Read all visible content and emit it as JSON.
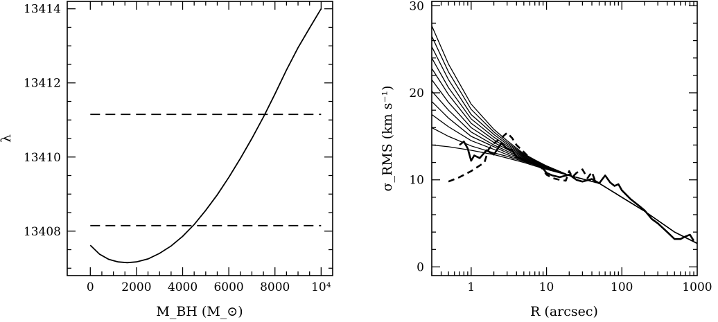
{
  "chart_data": [
    {
      "type": "line",
      "xlabel": "M_BH (M_⊙)",
      "ylabel": "λ",
      "xlim": [
        -1000,
        10500
      ],
      "ylim": [
        13406.8,
        13414.2
      ],
      "xticks": [
        0,
        2000,
        4000,
        6000,
        8000,
        10000
      ],
      "xtick_labels": [
        "0",
        "2000",
        "4000",
        "6000",
        "8000",
        "10⁴"
      ],
      "yticks": [
        13408,
        13410,
        13412,
        13414
      ],
      "ytick_labels": [
        "13408",
        "13410",
        "13412",
        "13414"
      ],
      "grid": false,
      "series": [
        {
          "style": "solid",
          "x": [
            0,
            400,
            800,
            1200,
            1600,
            2000,
            2500,
            3000,
            3500,
            4000,
            4500,
            5000,
            5500,
            6000,
            6500,
            7000,
            7500,
            8000,
            8500,
            9000,
            9500,
            10000
          ],
          "y": [
            13407.62,
            13407.38,
            13407.24,
            13407.17,
            13407.15,
            13407.17,
            13407.25,
            13407.4,
            13407.6,
            13407.86,
            13408.18,
            13408.56,
            13408.98,
            13409.45,
            13409.96,
            13410.5,
            13411.08,
            13411.7,
            13412.35,
            13412.95,
            13413.48,
            13414.0
          ]
        },
        {
          "style": "dashed",
          "x": [
            0,
            10000
          ],
          "y": [
            13411.15,
            13411.15
          ]
        },
        {
          "style": "dashed",
          "x": [
            0,
            10000
          ],
          "y": [
            13408.15,
            13408.15
          ]
        }
      ]
    },
    {
      "type": "line",
      "xlabel": "R (arcsec)",
      "ylabel": "σ_RMS (km s⁻¹)",
      "xscale": "log",
      "xlim": [
        0.3,
        1000
      ],
      "ylim": [
        -1,
        30.5
      ],
      "xticks": [
        1,
        10,
        100,
        1000
      ],
      "xtick_labels": [
        "1",
        "10",
        "100",
        "1000"
      ],
      "yticks": [
        0,
        10,
        20,
        30
      ],
      "ytick_labels": [
        "0",
        "10",
        "20",
        "30"
      ],
      "grid": false,
      "model_curves": {
        "x": [
          0.3,
          0.5,
          1,
          2,
          3,
          5,
          7,
          10,
          20,
          50,
          100,
          200,
          500,
          1000
        ],
        "tail": [
          9.6,
          8.0,
          6.4,
          4.0,
          2.7
        ],
        "series": [
          {
            "y": [
              14.0,
              13.8,
              13.4,
              12.9,
              12.5,
              12.0,
              11.6,
              11.2,
              10.5
            ]
          },
          {
            "y": [
              16.0,
              15.0,
              13.9,
              13.1,
              12.7,
              12.1,
              11.7,
              11.3,
              10.5
            ]
          },
          {
            "y": [
              17.5,
              16.1,
              14.5,
              13.5,
              12.9,
              12.2,
              11.8,
              11.3,
              10.5
            ]
          },
          {
            "y": [
              19.0,
              17.1,
              15.0,
              13.8,
              13.1,
              12.3,
              11.8,
              11.4,
              10.5
            ]
          },
          {
            "y": [
              20.2,
              18.0,
              15.5,
              14.0,
              13.3,
              12.4,
              11.9,
              11.4,
              10.5
            ]
          },
          {
            "y": [
              21.5,
              18.9,
              16.0,
              14.3,
              13.5,
              12.5,
              12.0,
              11.5,
              10.5
            ]
          },
          {
            "y": [
              22.8,
              19.8,
              16.5,
              14.6,
              13.7,
              12.6,
              12.0,
              11.5,
              10.5
            ]
          },
          {
            "y": [
              24.0,
              20.6,
              17.0,
              14.9,
              13.9,
              12.7,
              12.1,
              11.5,
              10.5
            ]
          },
          {
            "y": [
              25.3,
              21.5,
              17.5,
              15.2,
              14.1,
              12.8,
              12.2,
              11.6,
              10.5
            ]
          },
          {
            "y": [
              26.5,
              22.4,
              18.1,
              15.5,
              14.3,
              12.9,
              12.2,
              11.6,
              10.5
            ]
          },
          {
            "y": [
              27.7,
              23.3,
              18.7,
              15.8,
              14.5,
              13.0,
              12.3,
              11.6,
              10.5
            ]
          }
        ]
      },
      "observed": [
        {
          "style": "solid-thick",
          "x": [
            0.7,
            0.8,
            0.9,
            1.0,
            1.1,
            1.3,
            1.6,
            2.0,
            2.5,
            3.0,
            3.5,
            4.0,
            5.0,
            6.0,
            7.0,
            8.0,
            9.0,
            10,
            12,
            15,
            20,
            25,
            30,
            40,
            50,
            60,
            70,
            80,
            90,
            100,
            130,
            170,
            200,
            250,
            300,
            400,
            500,
            600,
            700,
            800,
            900
          ],
          "y": [
            14.0,
            14.4,
            13.6,
            12.2,
            12.8,
            12.5,
            13.4,
            12.9,
            14.2,
            13.6,
            13.4,
            12.6,
            12.3,
            12.0,
            11.9,
            11.5,
            11.3,
            10.8,
            10.5,
            10.3,
            10.6,
            10.0,
            9.8,
            10.1,
            9.6,
            10.5,
            9.7,
            9.3,
            9.5,
            8.8,
            7.8,
            7.0,
            6.5,
            5.5,
            5.0,
            4.0,
            3.2,
            3.2,
            3.5,
            3.7,
            3.0
          ]
        },
        {
          "style": "dashed-thick",
          "x": [
            0.5,
            0.7,
            1.0,
            1.5,
            1.7,
            2.0,
            2.5,
            3.0,
            3.5,
            4.0,
            5.0,
            6.0,
            8.0,
            10,
            12,
            15,
            18,
            20,
            22,
            25,
            30,
            35,
            40,
            45
          ],
          "y": [
            9.8,
            10.3,
            11.0,
            12.0,
            13.5,
            14.2,
            14.8,
            15.4,
            14.8,
            14.0,
            13.2,
            12.5,
            11.8,
            10.6,
            10.2,
            10.0,
            9.9,
            11.0,
            10.3,
            10.8,
            11.2,
            10.2,
            10.9,
            9.7
          ]
        }
      ]
    }
  ]
}
